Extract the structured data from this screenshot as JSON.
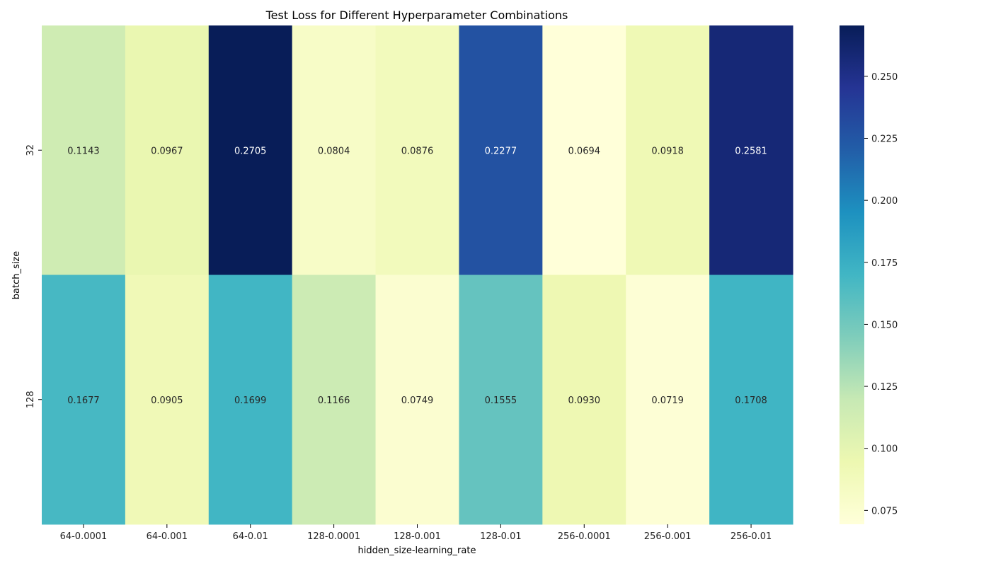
{
  "chart_data": {
    "type": "heatmap",
    "title": "Test Loss for Different Hyperparameter Combinations",
    "xlabel": "hidden_size-learning_rate",
    "ylabel": "batch_size",
    "x_categories": [
      "64-0.0001",
      "64-0.001",
      "64-0.01",
      "128-0.0001",
      "128-0.001",
      "128-0.01",
      "256-0.0001",
      "256-0.001",
      "256-0.01"
    ],
    "y_categories": [
      "32",
      "128"
    ],
    "values": [
      [
        0.1143,
        0.0967,
        0.2705,
        0.0804,
        0.0876,
        0.2277,
        0.0694,
        0.0918,
        0.2581
      ],
      [
        0.1677,
        0.0905,
        0.1699,
        0.1166,
        0.0749,
        0.1555,
        0.093,
        0.0719,
        0.1708
      ]
    ],
    "value_labels": [
      [
        "0.1143",
        "0.0967",
        "0.2705",
        "0.0804",
        "0.0876",
        "0.2277",
        "0.0694",
        "0.0918",
        "0.2581"
      ],
      [
        "0.1677",
        "0.0905",
        "0.1699",
        "0.1166",
        "0.0749",
        "0.1555",
        "0.0930",
        "0.0719",
        "0.1708"
      ]
    ],
    "colormap": "YlGnBu",
    "vmin": 0.0694,
    "vmax": 0.2705,
    "colorbar_ticks": [
      "0.075",
      "0.100",
      "0.125",
      "0.150",
      "0.175",
      "0.200",
      "0.225",
      "0.250"
    ],
    "colorbar_tick_values": [
      0.075,
      0.1,
      0.125,
      0.15,
      0.175,
      0.2,
      0.225,
      0.25
    ]
  }
}
